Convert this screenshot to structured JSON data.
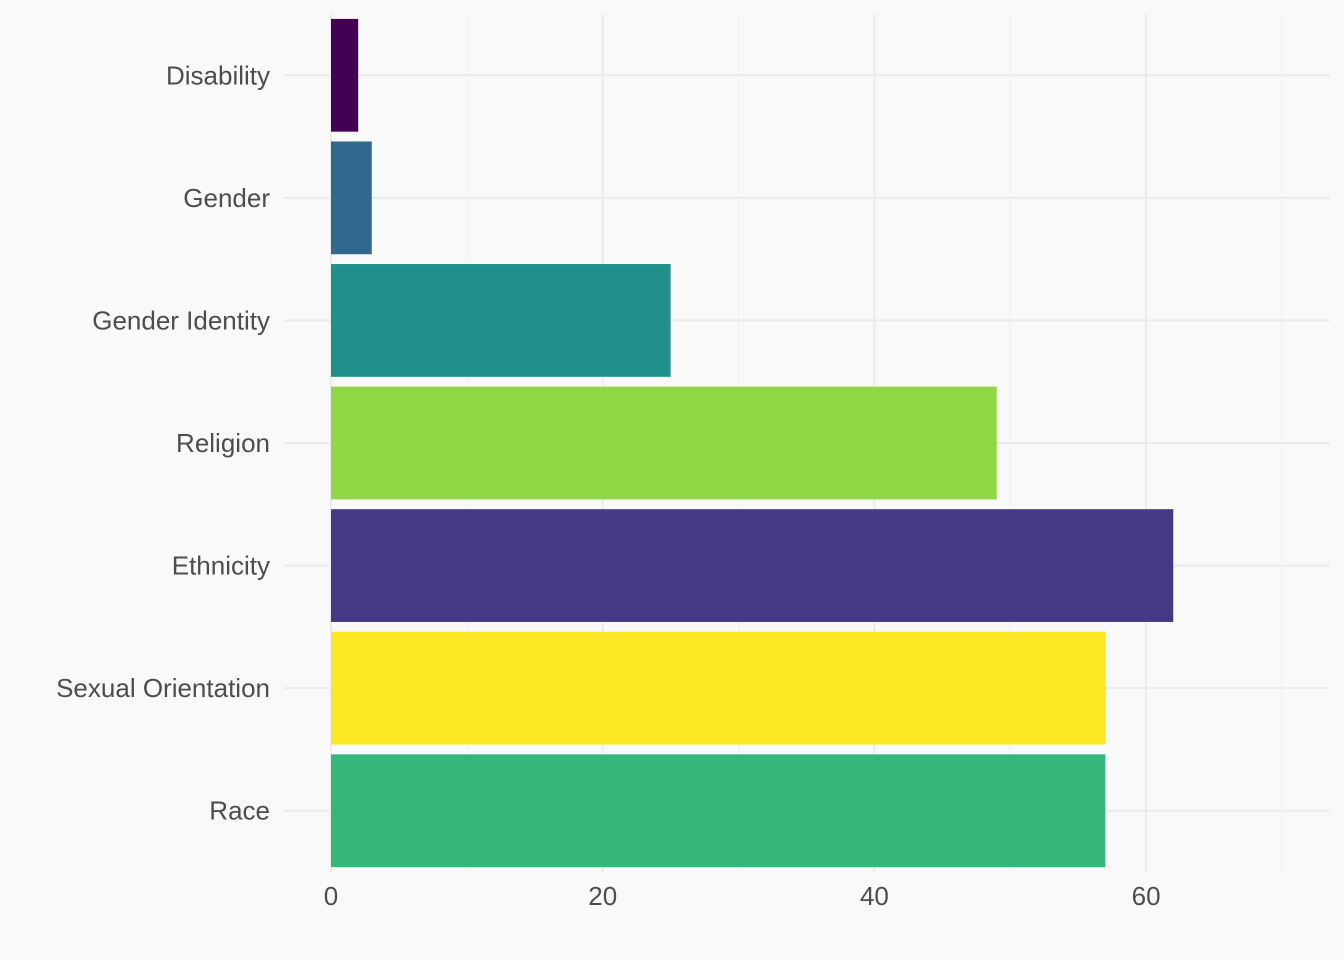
{
  "chart_data": {
    "type": "bar",
    "orientation": "horizontal",
    "title": "",
    "xlabel": "",
    "ylabel": "",
    "categories": [
      "Disability",
      "Gender",
      "Gender Identity",
      "Religion",
      "Ethnicity",
      "Sexual Orientation",
      "Race"
    ],
    "values": [
      2,
      3,
      25,
      49,
      62,
      57,
      57
    ],
    "colors": [
      "#440154",
      "#31688e",
      "#21908c",
      "#8fd744",
      "#443a83",
      "#fde725",
      "#35b779"
    ],
    "xlim": [
      0,
      73
    ],
    "x_ticks": [
      0,
      20,
      40,
      60
    ],
    "x_tick_labels": [
      "0",
      "20",
      "40",
      "60"
    ],
    "grid": true,
    "legend": "none",
    "background": "#f9f9f9"
  }
}
